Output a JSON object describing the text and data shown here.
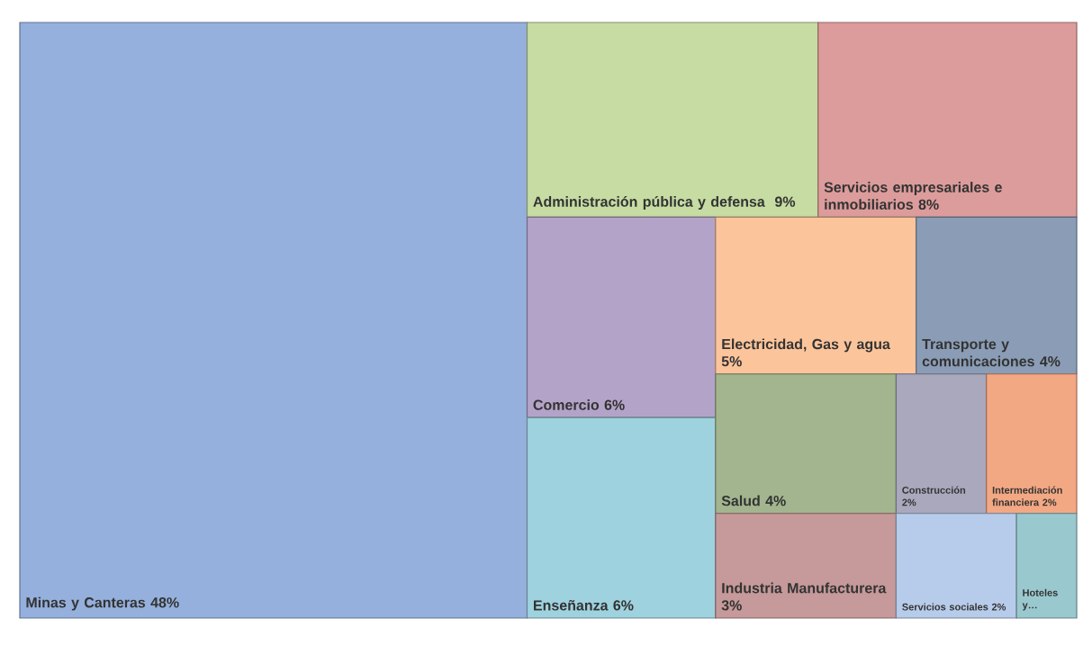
{
  "chart_data": {
    "type": "other",
    "categories": [
      "Minas y Canteras",
      "Administración pública y defensa ",
      "Servicios empresariales e inmobiliarios",
      "Comercio",
      "Enseñanza",
      "Electricidad, Gas y agua",
      "Transporte y comunicaciones",
      "Salud",
      "Industria Manufacturera",
      "Construcción",
      "Intermediación financiera",
      "Servicios sociales",
      "Hoteles y…"
    ],
    "values": [
      48,
      9,
      8,
      6,
      6,
      5,
      4,
      4,
      3,
      2,
      2,
      2,
      null
    ],
    "value_labels": [
      "48%",
      "9%",
      "8%",
      "6%",
      "6%",
      "5%",
      "4%",
      "4%",
      "3%",
      "2%",
      "2%",
      "2%",
      null
    ],
    "colors": [
      "#95b0dc",
      "#c6dca3",
      "#dc9c9b",
      "#b4a3c8",
      "#9fd2df",
      "#fbc49b",
      "#8b9db6",
      "#a3b58f",
      "#c6999a",
      "#a9a8bd",
      "#f3a884",
      "#b7cbea",
      "#9ac8cf"
    ]
  }
}
